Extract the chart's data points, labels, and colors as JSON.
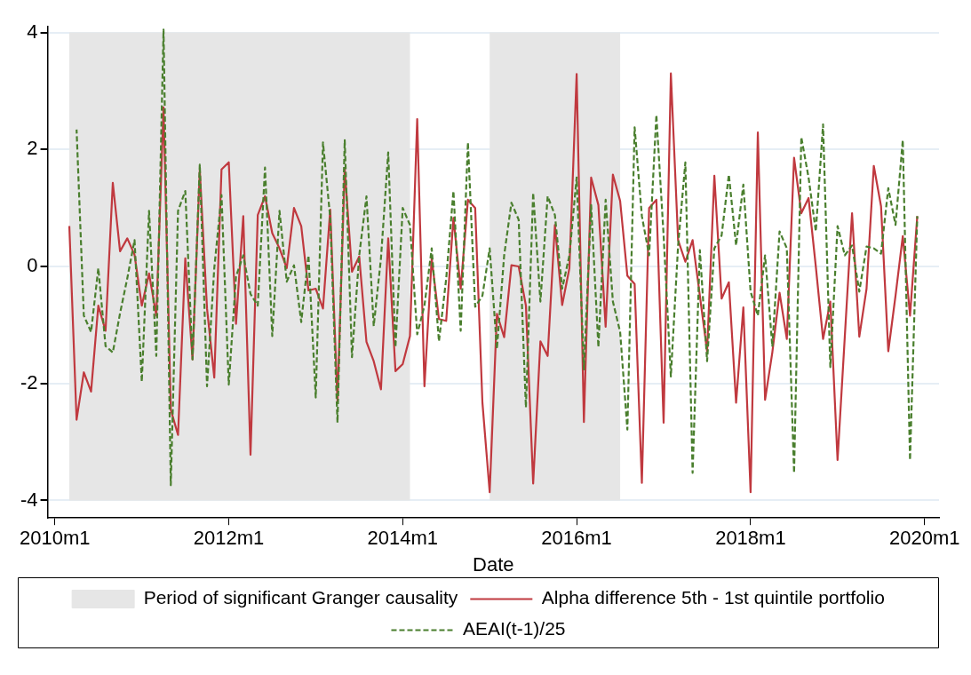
{
  "chart_data": {
    "type": "line",
    "xlabel": "Date",
    "xlim": [
      "2009-12",
      "2020-03"
    ],
    "xticks": [
      {
        "value": "2010-01",
        "label": "2010m1"
      },
      {
        "value": "2012-01",
        "label": "2012m1"
      },
      {
        "value": "2014-01",
        "label": "2014m1"
      },
      {
        "value": "2016-01",
        "label": "2016m1"
      },
      {
        "value": "2018-01",
        "label": "2018m1"
      },
      {
        "value": "2020-01",
        "label": "2020m1"
      }
    ],
    "ylim": [
      -4.3,
      4.1
    ],
    "yticks": [
      -4,
      -2,
      0,
      2,
      4
    ],
    "grid": "y",
    "legend": "bottom",
    "bands": [
      {
        "axis": "x",
        "from": "2010-03",
        "to": "2014-02",
        "label": "Period of significant Granger causality",
        "color": "#e6e6e6"
      },
      {
        "axis": "x",
        "from": "2015-01",
        "to": "2016-07",
        "color": "#e6e6e6"
      }
    ],
    "series": [
      {
        "name": "Alpha difference 5th - 1st quintile portfolio",
        "color": "#c0393f",
        "line_style": "solid",
        "x": [
          "2010-03",
          "2010-04",
          "2010-05",
          "2010-06",
          "2010-07",
          "2010-08",
          "2010-09",
          "2010-10",
          "2010-11",
          "2010-12",
          "2011-01",
          "2011-02",
          "2011-03",
          "2011-04",
          "2011-05",
          "2011-06",
          "2011-07",
          "2011-08",
          "2011-09",
          "2011-10",
          "2011-11",
          "2011-12",
          "2012-01",
          "2012-02",
          "2012-03",
          "2012-04",
          "2012-05",
          "2012-06",
          "2012-07",
          "2012-08",
          "2012-09",
          "2012-10",
          "2012-11",
          "2012-12",
          "2013-01",
          "2013-02",
          "2013-03",
          "2013-04",
          "2013-05",
          "2013-06",
          "2013-07",
          "2013-08",
          "2013-09",
          "2013-10",
          "2013-11",
          "2013-12",
          "2014-01",
          "2014-02",
          "2014-03",
          "2014-04",
          "2014-05",
          "2014-06",
          "2014-07",
          "2014-08",
          "2014-09",
          "2014-10",
          "2014-11",
          "2014-12",
          "2015-01",
          "2015-02",
          "2015-03",
          "2015-04",
          "2015-05",
          "2015-06",
          "2015-07",
          "2015-08",
          "2015-09",
          "2015-10",
          "2015-11",
          "2015-12",
          "2016-01",
          "2016-02",
          "2016-03",
          "2016-04",
          "2016-05",
          "2016-06",
          "2016-07",
          "2016-08",
          "2016-09",
          "2016-10",
          "2016-11",
          "2016-12",
          "2017-01",
          "2017-02",
          "2017-03",
          "2017-04",
          "2017-05",
          "2017-06",
          "2017-07",
          "2017-08",
          "2017-09",
          "2017-10",
          "2017-11",
          "2017-12",
          "2018-01",
          "2018-02",
          "2018-03",
          "2018-04",
          "2018-05",
          "2018-06",
          "2018-07",
          "2018-08",
          "2018-09",
          "2018-10",
          "2018-11",
          "2018-12",
          "2019-01",
          "2019-02",
          "2019-03",
          "2019-04",
          "2019-05",
          "2019-06",
          "2019-07",
          "2019-08",
          "2019-09",
          "2019-10",
          "2019-11",
          "2019-12"
        ],
        "values": [
          0.69,
          -2.62,
          -1.81,
          -2.14,
          -0.67,
          -1.1,
          1.43,
          0.26,
          0.48,
          0.2,
          -0.67,
          -0.12,
          -0.84,
          2.72,
          -2.45,
          -2.88,
          0.14,
          -1.59,
          1.65,
          -0.72,
          -1.9,
          1.66,
          1.78,
          -0.98,
          0.86,
          -3.22,
          0.88,
          1.2,
          0.57,
          0.31,
          -0.03,
          1.0,
          0.69,
          -0.41,
          -0.38,
          -0.72,
          0.97,
          -2.3,
          1.67,
          -0.09,
          0.17,
          -1.29,
          -1.62,
          -2.1,
          0.48,
          -1.79,
          -1.67,
          -1.19,
          2.52,
          -2.05,
          0.14,
          -0.9,
          -0.93,
          0.83,
          -0.38,
          1.14,
          1.0,
          -2.33,
          -3.86,
          -0.81,
          -1.21,
          0.02,
          0.0,
          -0.67,
          -3.71,
          -1.28,
          -1.53,
          0.71,
          -0.66,
          -0.03,
          3.29,
          -2.66,
          1.52,
          1.05,
          -1.03,
          1.57,
          1.12,
          -0.16,
          -0.3,
          -3.7,
          1.0,
          1.14,
          -2.67,
          3.3,
          0.45,
          0.08,
          0.45,
          -0.5,
          -1.45,
          1.55,
          -0.55,
          -0.27,
          -2.33,
          -0.7,
          -3.86,
          2.29,
          -2.28,
          -1.47,
          -0.45,
          -1.24,
          1.86,
          0.91,
          1.17,
          0.0,
          -1.24,
          -0.6,
          -3.31,
          -1.2,
          0.91,
          -1.2,
          -0.38,
          1.72,
          1.03,
          -1.45,
          -0.5,
          0.52,
          -0.84,
          0.86
        ]
      },
      {
        "name": "AEAI(t-1)/25",
        "color": "#4a7f2e",
        "line_style": "dashed",
        "x": [
          "2010-04",
          "2010-05",
          "2010-06",
          "2010-07",
          "2010-08",
          "2010-09",
          "2010-10",
          "2010-11",
          "2010-12",
          "2011-01",
          "2011-02",
          "2011-03",
          "2011-04",
          "2011-05",
          "2011-06",
          "2011-07",
          "2011-08",
          "2011-09",
          "2011-10",
          "2011-11",
          "2011-12",
          "2012-01",
          "2012-02",
          "2012-03",
          "2012-04",
          "2012-05",
          "2012-06",
          "2012-07",
          "2012-08",
          "2012-09",
          "2012-10",
          "2012-11",
          "2012-12",
          "2013-01",
          "2013-02",
          "2013-03",
          "2013-04",
          "2013-05",
          "2013-06",
          "2013-07",
          "2013-08",
          "2013-09",
          "2013-10",
          "2013-11",
          "2013-12",
          "2014-01",
          "2014-02",
          "2014-03",
          "2014-04",
          "2014-05",
          "2014-06",
          "2014-07",
          "2014-08",
          "2014-09",
          "2014-10",
          "2014-11",
          "2014-12",
          "2015-01",
          "2015-02",
          "2015-03",
          "2015-04",
          "2015-05",
          "2015-06",
          "2015-07",
          "2015-08",
          "2015-09",
          "2015-10",
          "2015-11",
          "2015-12",
          "2016-01",
          "2016-02",
          "2016-03",
          "2016-04",
          "2016-05",
          "2016-06",
          "2016-07",
          "2016-08",
          "2016-09",
          "2016-10",
          "2016-11",
          "2016-12",
          "2017-01",
          "2017-02",
          "2017-03",
          "2017-04",
          "2017-05",
          "2017-06",
          "2017-07",
          "2017-08",
          "2017-09",
          "2017-10",
          "2017-11",
          "2017-12",
          "2018-01",
          "2018-02",
          "2018-03",
          "2018-04",
          "2018-05",
          "2018-06",
          "2018-07",
          "2018-08",
          "2018-09",
          "2018-10",
          "2018-11",
          "2018-12",
          "2019-01",
          "2019-02",
          "2019-03",
          "2019-04",
          "2019-05",
          "2019-06",
          "2019-07",
          "2019-08",
          "2019-09",
          "2019-10",
          "2019-11",
          "2019-12"
        ],
        "values": [
          2.34,
          -0.84,
          -1.12,
          -0.03,
          -1.36,
          -1.47,
          -0.8,
          -0.2,
          0.45,
          -1.97,
          0.95,
          -1.53,
          4.05,
          -3.74,
          0.95,
          1.29,
          -1.59,
          1.74,
          -2.05,
          -0.03,
          1.22,
          -2.02,
          -0.17,
          0.19,
          -0.47,
          -0.67,
          1.69,
          -1.19,
          0.95,
          -0.26,
          0.02,
          -0.95,
          0.19,
          -2.24,
          2.12,
          0.83,
          -2.67,
          2.16,
          -1.55,
          0.19,
          1.2,
          -1.02,
          0.14,
          1.95,
          -1.38,
          1.0,
          0.71,
          -1.16,
          -0.67,
          0.31,
          -1.28,
          -0.21,
          1.29,
          -1.1,
          2.12,
          -0.69,
          -0.5,
          0.31,
          -1.41,
          0.19,
          1.09,
          0.8,
          -2.41,
          1.26,
          -0.6,
          1.2,
          0.88,
          -0.38,
          0.19,
          1.52,
          -1.76,
          1.05,
          -1.38,
          1.14,
          -0.6,
          -1.12,
          -2.79,
          2.38,
          0.86,
          0.19,
          2.59,
          0.53,
          -1.88,
          0.36,
          1.78,
          -3.53,
          0.28,
          -1.62,
          0.31,
          0.53,
          1.57,
          0.36,
          1.4,
          -0.43,
          -0.84,
          0.19,
          -1.37,
          0.6,
          0.31,
          -3.53,
          2.21,
          1.52,
          0.6,
          2.43,
          -1.72,
          0.69,
          0.19,
          0.36,
          -0.43,
          0.34,
          0.31,
          0.22,
          1.34,
          0.71,
          2.16,
          -3.31,
          0.86
        ]
      }
    ]
  }
}
